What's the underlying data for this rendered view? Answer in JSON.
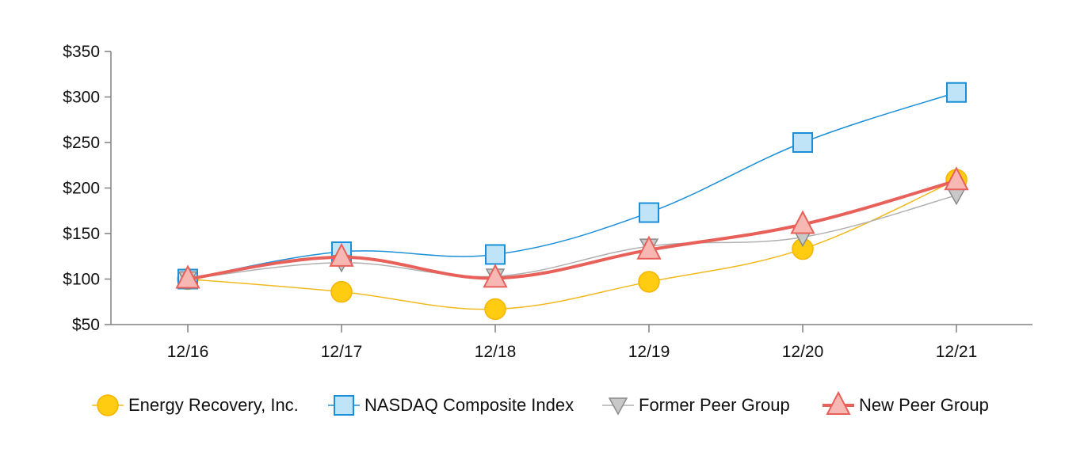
{
  "chart_data": {
    "type": "line",
    "title": "",
    "xlabel": "",
    "ylabel": "",
    "categories": [
      "12/16",
      "12/17",
      "12/18",
      "12/19",
      "12/20",
      "12/21"
    ],
    "y_ticks": [
      "$50",
      "$100",
      "$150",
      "$200",
      "$250",
      "$300",
      "$350"
    ],
    "y_tick_values": [
      50,
      100,
      150,
      200,
      250,
      300,
      350
    ],
    "ylim": [
      50,
      350
    ],
    "grid": false,
    "legend_position": "bottom",
    "series": [
      {
        "name": "Energy Recovery, Inc.",
        "values": [
          100,
          86,
          67,
          97,
          133,
          209
        ],
        "color": "#F2B91F",
        "fill": "#FFCC11",
        "stroke": "#F5B400",
        "marker": "circle",
        "line_width": 1.5
      },
      {
        "name": "NASDAQ Composite Index",
        "values": [
          100,
          130,
          127,
          173,
          250,
          305
        ],
        "color": "#1A8FD8",
        "fill": "#BFE3F7",
        "stroke": "#1A8FD8",
        "marker": "square",
        "line_width": 1.5
      },
      {
        "name": "Former Peer Group",
        "values": [
          100,
          118,
          103,
          136,
          146,
          192
        ],
        "color": "#B0B0B0",
        "fill": "#C8C8C8",
        "stroke": "#8A8A8A",
        "marker": "triangle-down",
        "line_width": 1.5
      },
      {
        "name": "New Peer Group",
        "values": [
          100,
          124,
          101,
          132,
          160,
          208
        ],
        "color": "#E8605A",
        "fill": "#F7B8B4",
        "stroke": "#E8605A",
        "marker": "triangle-up",
        "line_width": 4
      }
    ]
  }
}
